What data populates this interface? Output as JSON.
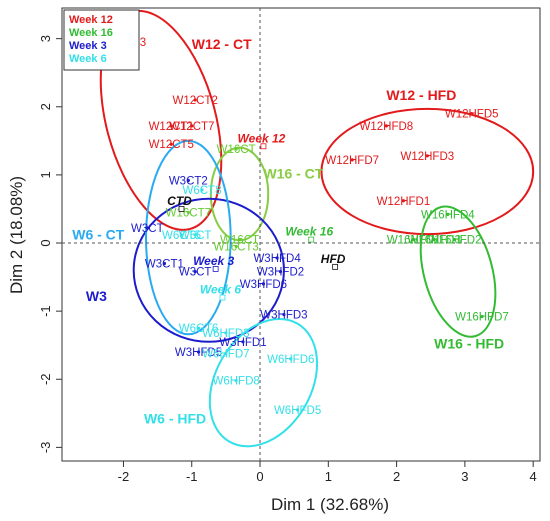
{
  "chart_data": {
    "type": "scatter",
    "title": "",
    "xlabel": "Dim 1 (32.68%)",
    "ylabel": "Dim 2 (18.08%)",
    "xlim": [
      -2.9,
      4.1
    ],
    "ylim": [
      -3.2,
      3.45
    ],
    "xticks": [
      -2,
      -1,
      0,
      1,
      2,
      3,
      4
    ],
    "yticks": [
      -3,
      -2,
      -1,
      0,
      1,
      2,
      3
    ],
    "grid": false,
    "legend_position": "top-left",
    "legend": [
      {
        "label": "Week 12",
        "color": "#e31a1c"
      },
      {
        "label": "Week 16",
        "color": "#33bb33"
      },
      {
        "label": "Week 3",
        "color": "#1c1ccc"
      },
      {
        "label": "Week 6",
        "color": "#33e0e8"
      }
    ],
    "points": [
      {
        "label": "W12CT3",
        "x": -2.0,
        "y": 2.95,
        "color": "#e31a1c"
      },
      {
        "label": "W12CT2",
        "x": -0.95,
        "y": 2.1,
        "color": "#e31a1c"
      },
      {
        "label": "W12CT1",
        "x": -1.3,
        "y": 1.72,
        "color": "#e31a1c"
      },
      {
        "label": "W12CT7",
        "x": -1.0,
        "y": 1.72,
        "color": "#e31a1c"
      },
      {
        "label": "W12CT5",
        "x": -1.3,
        "y": 1.45,
        "color": "#e31a1c"
      },
      {
        "label": "W12HFD5",
        "x": 3.1,
        "y": 1.9,
        "color": "#e31a1c"
      },
      {
        "label": "W12HFD8",
        "x": 1.85,
        "y": 1.72,
        "color": "#e31a1c"
      },
      {
        "label": "W12HFD7",
        "x": 1.35,
        "y": 1.22,
        "color": "#e31a1c"
      },
      {
        "label": "W12HFD3",
        "x": 2.45,
        "y": 1.28,
        "color": "#e31a1c"
      },
      {
        "label": "W12HFD1",
        "x": 2.1,
        "y": 0.62,
        "color": "#e31a1c"
      },
      {
        "label": "W16CT",
        "x": -0.35,
        "y": 1.38,
        "color": "#66cc33"
      },
      {
        "label": "W16CT7",
        "x": -1.05,
        "y": 0.45,
        "color": "#66cc33"
      },
      {
        "label": "W16CT",
        "x": -0.3,
        "y": 0.05,
        "color": "#66cc33"
      },
      {
        "label": "W16CT3",
        "x": -0.35,
        "y": -0.05,
        "color": "#66cc33"
      },
      {
        "label": "W16HFD4",
        "x": 2.75,
        "y": 0.42,
        "color": "#33bb33"
      },
      {
        "label": "W16HFD1",
        "x": 2.25,
        "y": 0.05,
        "color": "#33bb33"
      },
      {
        "label": "W16HFD3",
        "x": 2.55,
        "y": 0.05,
        "color": "#33bb33"
      },
      {
        "label": "W16HFD2",
        "x": 2.85,
        "y": 0.05,
        "color": "#33bb33"
      },
      {
        "label": "W16HFD7",
        "x": 3.25,
        "y": -1.08,
        "color": "#33bb33"
      },
      {
        "label": "W3CT2",
        "x": -1.05,
        "y": 0.92,
        "color": "#1c1ccc"
      },
      {
        "label": "W3CT",
        "x": -1.65,
        "y": 0.22,
        "color": "#1c1ccc"
      },
      {
        "label": "W3CT1",
        "x": -1.4,
        "y": -0.3,
        "color": "#1c1ccc"
      },
      {
        "label": "W3CT",
        "x": -0.95,
        "y": -0.42,
        "color": "#1c1ccc"
      },
      {
        "label": "W3HFD4",
        "x": 0.25,
        "y": -0.22,
        "color": "#1c1ccc"
      },
      {
        "label": "W3HFD2",
        "x": 0.3,
        "y": -0.42,
        "color": "#1c1ccc"
      },
      {
        "label": "W3HFD6",
        "x": 0.05,
        "y": -0.6,
        "color": "#1c1ccc"
      },
      {
        "label": "W3HFD3",
        "x": 0.35,
        "y": -1.05,
        "color": "#1c1ccc"
      },
      {
        "label": "W3HFD1",
        "x": -0.25,
        "y": -1.45,
        "color": "#1c1ccc"
      },
      {
        "label": "W3HFD5",
        "x": -0.9,
        "y": -1.6,
        "color": "#1c1ccc"
      },
      {
        "label": "W6CT8",
        "x": -0.85,
        "y": 0.78,
        "color": "#33e0e8"
      },
      {
        "label": "W6CT5",
        "x": -1.15,
        "y": 0.12,
        "color": "#33e0e8"
      },
      {
        "label": "W6CT",
        "x": -0.95,
        "y": 0.12,
        "color": "#33e0e8"
      },
      {
        "label": "W6GT6",
        "x": -0.9,
        "y": -1.25,
        "color": "#33e0e8"
      },
      {
        "label": "W6HFD3",
        "x": -0.5,
        "y": -1.32,
        "color": "#33e0e8"
      },
      {
        "label": "W6HFD7",
        "x": -0.5,
        "y": -1.62,
        "color": "#33e0e8"
      },
      {
        "label": "W6HFD6",
        "x": 0.45,
        "y": -1.7,
        "color": "#33e0e8"
      },
      {
        "label": "W6HFD8",
        "x": -0.35,
        "y": -2.02,
        "color": "#33e0e8"
      },
      {
        "label": "W6HFD5",
        "x": 0.55,
        "y": -2.45,
        "color": "#33e0e8"
      }
    ],
    "ellipses": [
      {
        "cx": -1.45,
        "cy": 1.8,
        "rx": 0.8,
        "ry": 1.65,
        "angle": 15,
        "color": "#e31a1c",
        "label": "W12 - CT",
        "label_x": -1.0,
        "label_y": 2.85
      },
      {
        "cx": 2.45,
        "cy": 1.05,
        "rx": 1.55,
        "ry": 0.92,
        "angle": 0,
        "color": "#e31a1c",
        "label": "W12 - HFD",
        "label_x": 1.85,
        "label_y": 2.1
      },
      {
        "cx": -0.3,
        "cy": 0.72,
        "rx": 0.42,
        "ry": 0.68,
        "angle": 0,
        "color": "#88cc44",
        "label": "W16 - CT",
        "label_x": 0.05,
        "label_y": 0.95
      },
      {
        "cx": 2.9,
        "cy": -0.42,
        "rx": 0.5,
        "ry": 0.98,
        "angle": 15,
        "color": "#33bb33",
        "label": "W16 - HFD",
        "label_x": 2.55,
        "label_y": -1.55
      },
      {
        "cx": -0.75,
        "cy": -0.4,
        "rx": 1.1,
        "ry": 1.05,
        "angle": 0,
        "color": "#1c1ccc",
        "label": "W3",
        "label_x": -2.55,
        "label_y": -0.85
      },
      {
        "cx": -1.05,
        "cy": 0.08,
        "rx": 0.62,
        "ry": 1.42,
        "angle": 0,
        "color": "#2aaaf0",
        "label": "W6 - CT",
        "label_x": -2.75,
        "label_y": 0.05
      },
      {
        "cx": 0.05,
        "cy": -2.05,
        "rx": 0.7,
        "ry": 1.0,
        "angle": -30,
        "color": "#33e0e8",
        "label": "W6 - HFD",
        "label_x": -1.7,
        "label_y": -2.65
      }
    ],
    "centroids": [
      {
        "label": "Week 12",
        "x": 0.05,
        "y": 1.42,
        "color": "#e31a1c"
      },
      {
        "label": "Week 16",
        "x": 0.75,
        "y": 0.05,
        "color": "#33bb33"
      },
      {
        "label": "Week 3",
        "x": -0.65,
        "y": -0.38,
        "color": "#1c1ccc"
      },
      {
        "label": "Week 6",
        "x": -0.55,
        "y": -0.8,
        "color": "#33e0e8"
      },
      {
        "label": "CTD",
        "x": -1.15,
        "y": 0.5,
        "color": "#111111"
      },
      {
        "label": "HFD",
        "x": 1.1,
        "y": -0.35,
        "color": "#111111"
      }
    ]
  }
}
